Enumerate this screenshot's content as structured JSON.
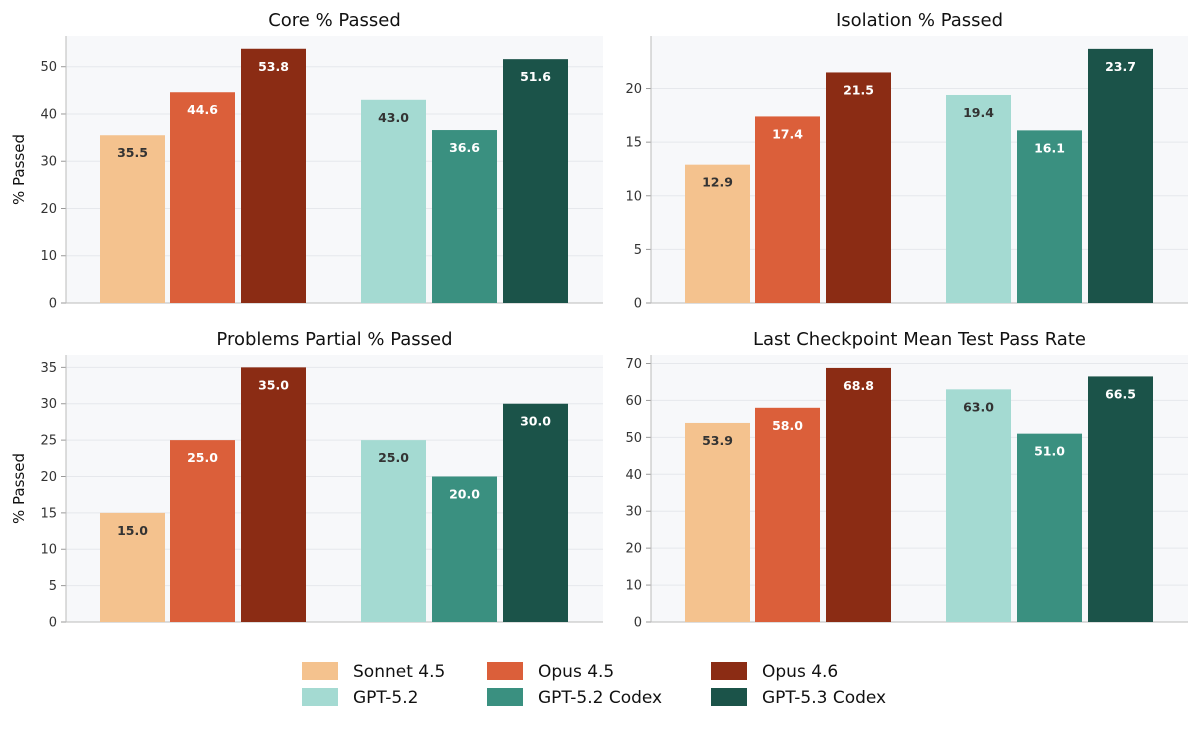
{
  "legend": [
    {
      "name": "Sonnet 4.5",
      "color": "#F4C28E"
    },
    {
      "name": "Opus 4.5",
      "color": "#DB5F3A"
    },
    {
      "name": "Opus 4.6",
      "color": "#8B2C14"
    },
    {
      "name": "GPT-5.2",
      "color": "#A4DAD2"
    },
    {
      "name": "GPT-5.2 Codex",
      "color": "#3A9080"
    },
    {
      "name": "GPT-5.3 Codex",
      "color": "#1B5349"
    }
  ],
  "chart_data": [
    {
      "type": "bar",
      "title": "Core % Passed",
      "ylabel": "% Passed",
      "ylim": [
        0,
        56.5
      ],
      "yticks": [
        "0",
        "10",
        "20",
        "30",
        "40",
        "50"
      ],
      "series": [
        {
          "name": "Sonnet 4.5",
          "values": [
            35.5
          ],
          "labels": [
            "35.5"
          ]
        },
        {
          "name": "Opus 4.5",
          "values": [
            44.6
          ],
          "labels": [
            "44.6"
          ]
        },
        {
          "name": "Opus 4.6",
          "values": [
            53.8
          ],
          "labels": [
            "53.8"
          ]
        },
        {
          "name": "GPT-5.2",
          "values": [
            43.0
          ],
          "labels": [
            "43.0"
          ]
        },
        {
          "name": "GPT-5.2 Codex",
          "values": [
            36.6
          ],
          "labels": [
            "36.6"
          ]
        },
        {
          "name": "GPT-5.3 Codex",
          "values": [
            51.6
          ],
          "labels": [
            "51.6"
          ]
        }
      ]
    },
    {
      "type": "bar",
      "title": "Isolation % Passed",
      "ylabel": "",
      "ylim": [
        0,
        24.9
      ],
      "yticks": [
        "0",
        "5",
        "10",
        "15",
        "20"
      ],
      "series": [
        {
          "name": "Sonnet 4.5",
          "values": [
            12.9
          ],
          "labels": [
            "12.9"
          ]
        },
        {
          "name": "Opus 4.5",
          "values": [
            17.4
          ],
          "labels": [
            "17.4"
          ]
        },
        {
          "name": "Opus 4.6",
          "values": [
            21.5
          ],
          "labels": [
            "21.5"
          ]
        },
        {
          "name": "GPT-5.2",
          "values": [
            19.4
          ],
          "labels": [
            "19.4"
          ]
        },
        {
          "name": "GPT-5.2 Codex",
          "values": [
            16.1
          ],
          "labels": [
            "16.1"
          ]
        },
        {
          "name": "GPT-5.3 Codex",
          "values": [
            23.7
          ],
          "labels": [
            "23.7"
          ]
        }
      ]
    },
    {
      "type": "bar",
      "title": "Problems Partial % Passed",
      "ylabel": "% Passed",
      "ylim": [
        0,
        36.7
      ],
      "yticks": [
        "0",
        "5",
        "10",
        "15",
        "20",
        "25",
        "30",
        "35"
      ],
      "series": [
        {
          "name": "Sonnet 4.5",
          "values": [
            15.0
          ],
          "labels": [
            "15.0"
          ]
        },
        {
          "name": "Opus 4.5",
          "values": [
            25.0
          ],
          "labels": [
            "25.0"
          ]
        },
        {
          "name": "Opus 4.6",
          "values": [
            35.0
          ],
          "labels": [
            "35.0"
          ]
        },
        {
          "name": "GPT-5.2",
          "values": [
            25.0
          ],
          "labels": [
            "25.0"
          ]
        },
        {
          "name": "GPT-5.2 Codex",
          "values": [
            20.0
          ],
          "labels": [
            "20.0"
          ]
        },
        {
          "name": "GPT-5.3 Codex",
          "values": [
            30.0
          ],
          "labels": [
            "30.0"
          ]
        }
      ]
    },
    {
      "type": "bar",
      "title": "Last Checkpoint Mean Test Pass Rate",
      "ylabel": "",
      "ylim": [
        0,
        72.3
      ],
      "yticks": [
        "0",
        "10",
        "20",
        "30",
        "40",
        "50",
        "60",
        "70"
      ],
      "series": [
        {
          "name": "Sonnet 4.5",
          "values": [
            53.9
          ],
          "labels": [
            "53.9"
          ]
        },
        {
          "name": "Opus 4.5",
          "values": [
            58.0
          ],
          "labels": [
            "58.0"
          ]
        },
        {
          "name": "Opus 4.6",
          "values": [
            68.8
          ],
          "labels": [
            "68.8"
          ]
        },
        {
          "name": "GPT-5.2",
          "values": [
            63.0
          ],
          "labels": [
            "63.0"
          ]
        },
        {
          "name": "GPT-5.2 Codex",
          "values": [
            51.0
          ],
          "labels": [
            "51.0"
          ]
        },
        {
          "name": "GPT-5.3 Codex",
          "values": [
            66.5
          ],
          "labels": [
            "66.5"
          ]
        }
      ]
    }
  ]
}
